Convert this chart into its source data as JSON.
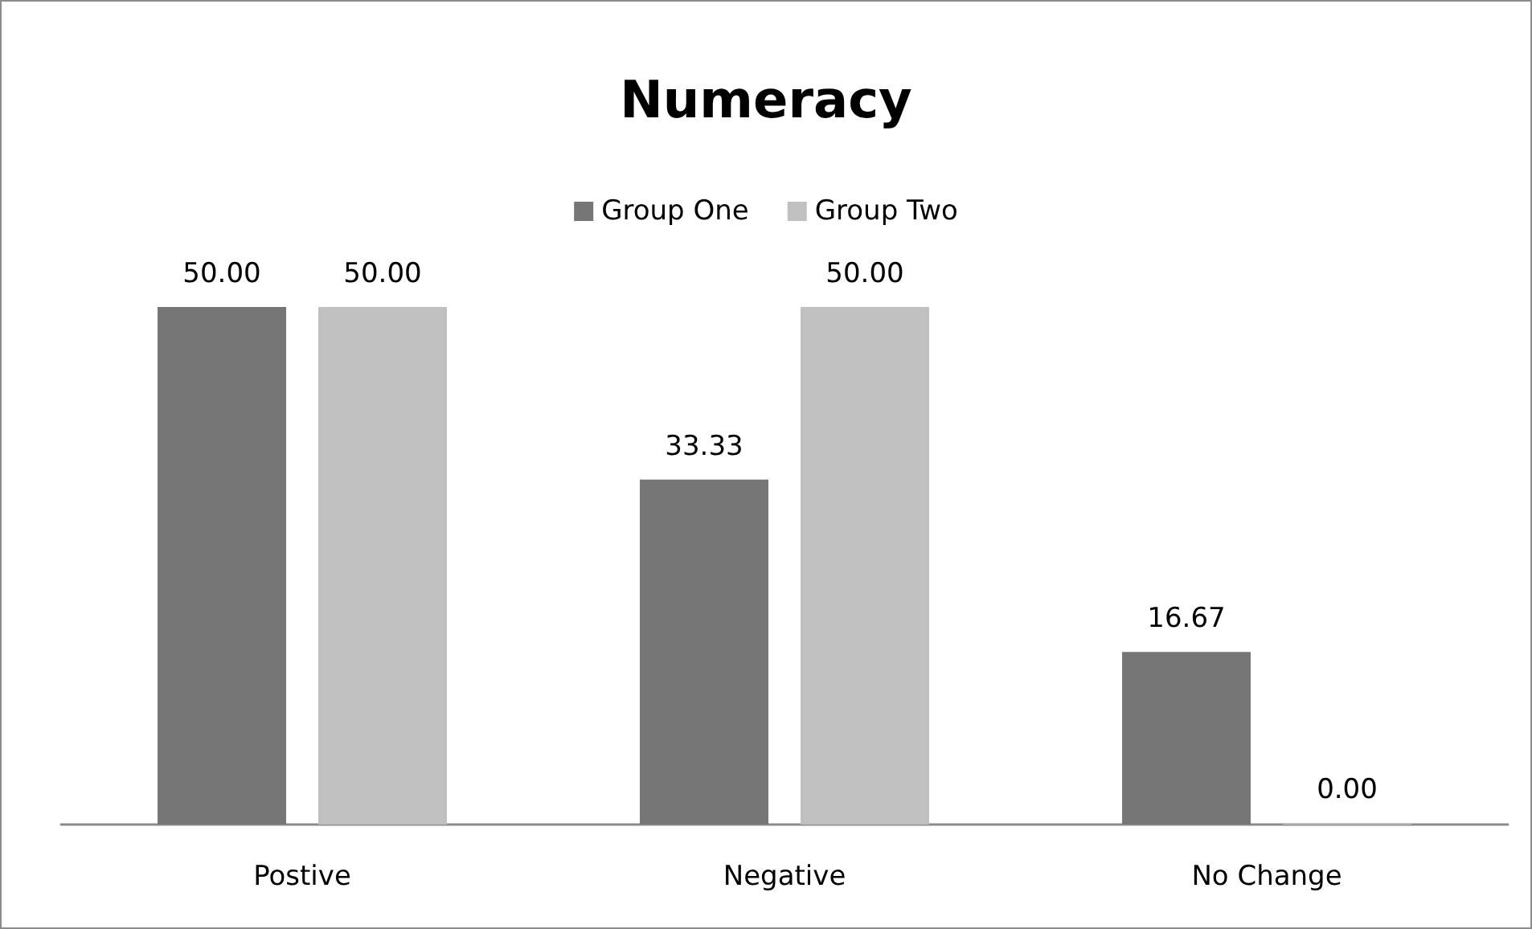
{
  "chart_data": {
    "type": "bar",
    "title": "Numeracy",
    "categories": [
      "Postive",
      "Negative",
      "No Change"
    ],
    "series": [
      {
        "name": "Group One",
        "color": "#767676",
        "values": [
          50,
          33.33,
          16.67
        ],
        "value_labels": [
          "50.00",
          "33.33",
          "16.67"
        ]
      },
      {
        "name": "Group Two",
        "color": "#c0c0c0",
        "values": [
          50,
          50,
          0
        ],
        "value_labels": [
          "50.00",
          "50.00",
          "0.00"
        ]
      }
    ],
    "legend": "top"
  }
}
